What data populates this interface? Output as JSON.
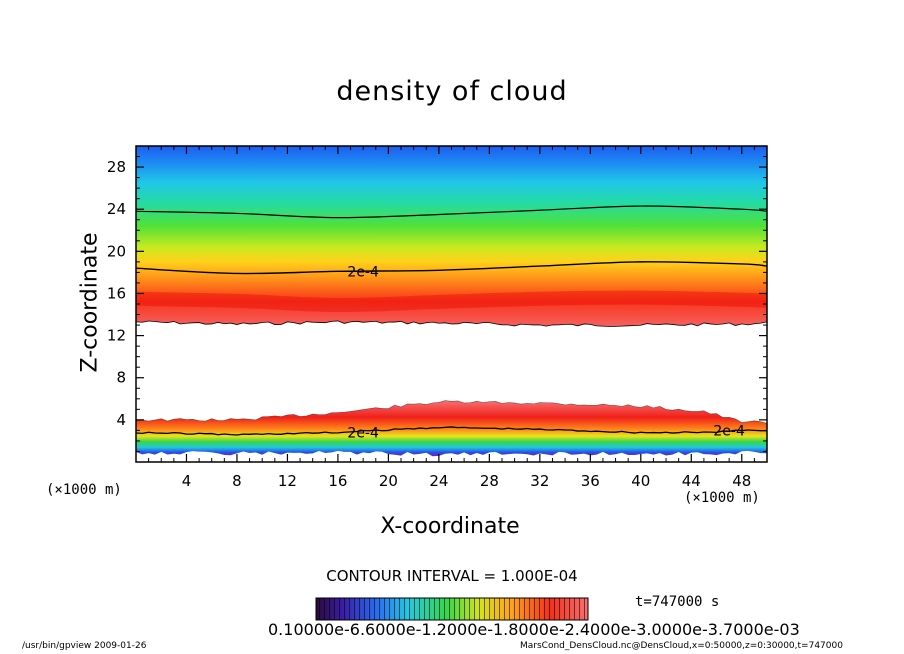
{
  "chart_data": {
    "type": "heatmap",
    "title": "density of cloud",
    "xlabel": "X-coordinate",
    "ylabel": "Z-coordinate",
    "x_unit_left": "(×1000 m)",
    "x_unit_right": "(×1000 m)",
    "xlim": [
      0,
      50
    ],
    "ylim": [
      0,
      30
    ],
    "x_ticks": [
      4,
      8,
      12,
      16,
      20,
      24,
      28,
      32,
      36,
      40,
      44,
      48
    ],
    "y_ticks": [
      4,
      8,
      12,
      16,
      20,
      24,
      28
    ],
    "contour_label": "2e-4",
    "upper_layer": {
      "x": [
        0,
        8,
        16,
        24,
        32,
        40,
        48,
        50
      ],
      "contour_top_z": [
        23.8,
        23.6,
        23.2,
        23.5,
        23.9,
        24.3,
        24.0,
        23.8
      ],
      "contour_2e4_z": [
        18.4,
        17.9,
        18.1,
        18.2,
        18.6,
        19.0,
        18.8,
        18.6
      ],
      "base_z": [
        13.3,
        13.1,
        13.3,
        13.2,
        13.0,
        13.0,
        13.1,
        13.2
      ],
      "max_core_z": [
        15.5,
        15.3,
        14.9,
        15.2,
        15.5,
        15.6,
        15.4,
        15.3
      ]
    },
    "lower_layer": {
      "x": [
        0,
        8,
        16,
        24,
        32,
        40,
        45,
        48,
        50
      ],
      "top_z": [
        4.0,
        4.0,
        4.7,
        5.7,
        5.6,
        5.3,
        4.8,
        3.8,
        3.8
      ],
      "contour_2e4_z": [
        2.8,
        2.6,
        2.8,
        3.3,
        3.1,
        2.8,
        2.8,
        3.0,
        3.0
      ],
      "base_z": [
        0.9,
        0.8,
        0.9,
        0.7,
        0.8,
        0.8,
        0.8,
        0.9,
        1.0
      ]
    },
    "contour_interval": "CONTOUR INTERVAL = 1.000E-04",
    "colorbar_labels": "0.10000e-6.6000e-1.2000e-1.8000e-2.4000e-3.0000e-3.7000e-03",
    "time": "t=747000 s"
  },
  "footer": {
    "left": "/usr/bin/gpview  2009-01-26",
    "right": "MarsCond_DensCloud.nc@DensCloud,x=0:50000,z=0:30000,t=747000"
  },
  "colors": {
    "high": "#e81414",
    "orange": "#ff9a1a",
    "yellow": "#f4e21a",
    "green": "#2bd05a",
    "cyan": "#21c7e0",
    "blue": "#2457e6",
    "purple": "#7f1fb5"
  }
}
